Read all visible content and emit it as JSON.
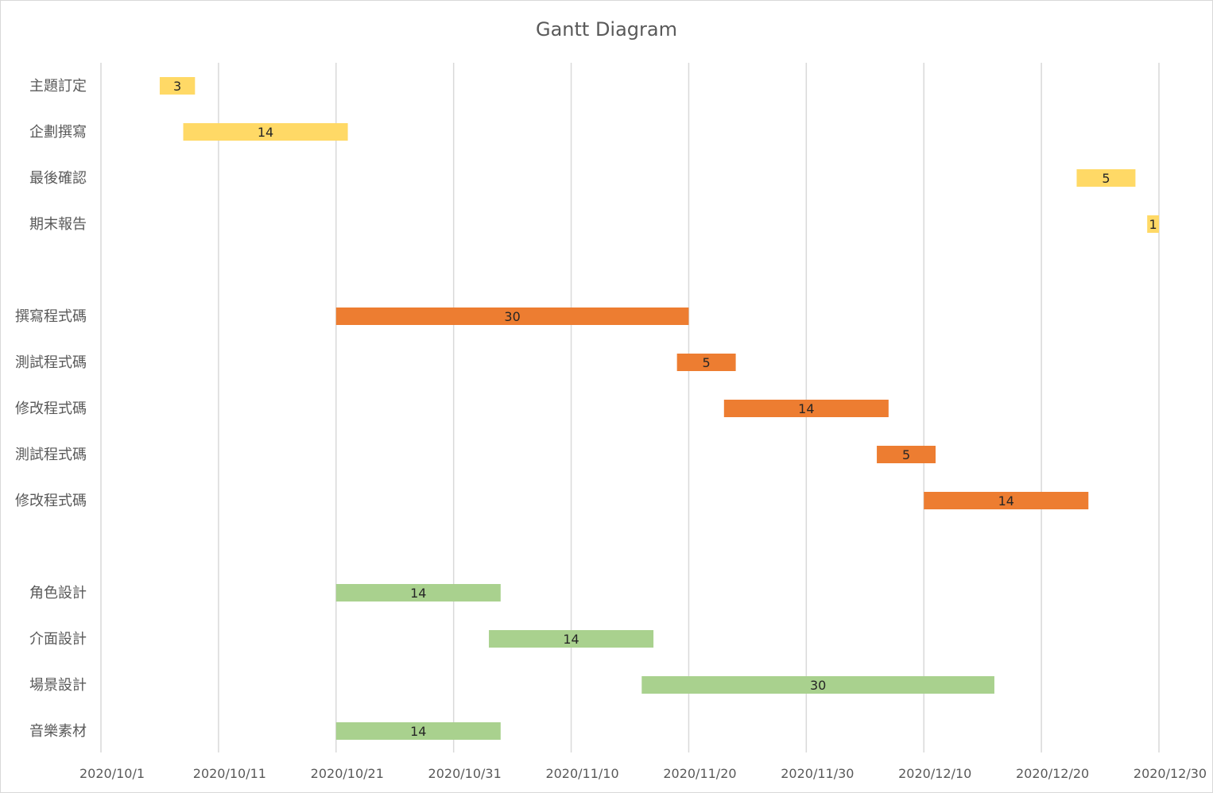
{
  "chart_data": {
    "type": "bar",
    "orientation": "horizontal",
    "title": "Gantt Diagram",
    "xlabel": "",
    "ylabel": "",
    "grid": "vertical",
    "legend": "none",
    "x_ticks": [
      "2020/10/1",
      "2020/10/11",
      "2020/10/21",
      "2020/10/31",
      "2020/11/10",
      "2020/11/20",
      "2020/11/30",
      "2020/12/10",
      "2020/12/20",
      "2020/12/30"
    ],
    "x_range": [
      "2020/10/1",
      "2020/12/30"
    ],
    "colors": {
      "planning": "#FFD966",
      "coding": "#ED7D31",
      "design": "#A9D18E"
    },
    "tasks": [
      {
        "label": "主題訂定",
        "start": "2020/10/6",
        "duration": 3,
        "group": "planning"
      },
      {
        "label": "企劃撰寫",
        "start": "2020/10/8",
        "duration": 14,
        "group": "planning"
      },
      {
        "label": "最後確認",
        "start": "2020/12/23",
        "duration": 5,
        "group": "planning"
      },
      {
        "label": "期末報告",
        "start": "2020/12/29",
        "duration": 1,
        "group": "planning"
      },
      {
        "label": "",
        "start": null,
        "duration": null,
        "group": null
      },
      {
        "label": "撰寫程式碼",
        "start": "2020/10/21",
        "duration": 30,
        "group": "coding"
      },
      {
        "label": "測試程式碼",
        "start": "2020/11/19",
        "duration": 5,
        "group": "coding"
      },
      {
        "label": "修改程式碼",
        "start": "2020/11/23",
        "duration": 14,
        "group": "coding"
      },
      {
        "label": "測試程式碼",
        "start": "2020/12/6",
        "duration": 5,
        "group": "coding"
      },
      {
        "label": "修改程式碼",
        "start": "2020/12/10",
        "duration": 14,
        "group": "coding"
      },
      {
        "label": "",
        "start": null,
        "duration": null,
        "group": null
      },
      {
        "label": "角色設計",
        "start": "2020/10/21",
        "duration": 14,
        "group": "design"
      },
      {
        "label": "介面設計",
        "start": "2020/11/3",
        "duration": 14,
        "group": "design"
      },
      {
        "label": "場景設計",
        "start": "2020/11/16",
        "duration": 30,
        "group": "design"
      },
      {
        "label": "音樂素材",
        "start": "2020/10/21",
        "duration": 14,
        "group": "design"
      }
    ]
  }
}
